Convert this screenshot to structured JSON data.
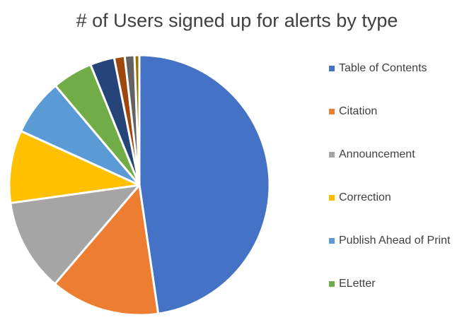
{
  "chart_data": {
    "type": "pie",
    "title": "# of Users signed up for alerts by type",
    "legend_position": "right",
    "slices": [
      {
        "name": "Table of Contents",
        "value": 47.5,
        "color": "#4472C4",
        "in_legend": true
      },
      {
        "name": "Citation",
        "value": 13.5,
        "color": "#ED7D31",
        "in_legend": true
      },
      {
        "name": "Announcement",
        "value": 11.5,
        "color": "#A5A5A5",
        "in_legend": true
      },
      {
        "name": "Correction",
        "value": 9.0,
        "color": "#FFC000",
        "in_legend": true
      },
      {
        "name": "Publish Ahead of Print",
        "value": 7.0,
        "color": "#5B9BD5",
        "in_legend": true
      },
      {
        "name": "ELetter",
        "value": 5.0,
        "color": "#70AD47",
        "in_legend": true
      },
      {
        "name": "",
        "value": 3.0,
        "color": "#264478",
        "in_legend": false
      },
      {
        "name": "",
        "value": 1.3,
        "color": "#9E480E",
        "in_legend": false
      },
      {
        "name": "",
        "value": 1.2,
        "color": "#636363",
        "in_legend": false
      },
      {
        "name": "",
        "value": 0.6,
        "color": "#997300",
        "in_legend": false
      }
    ]
  }
}
